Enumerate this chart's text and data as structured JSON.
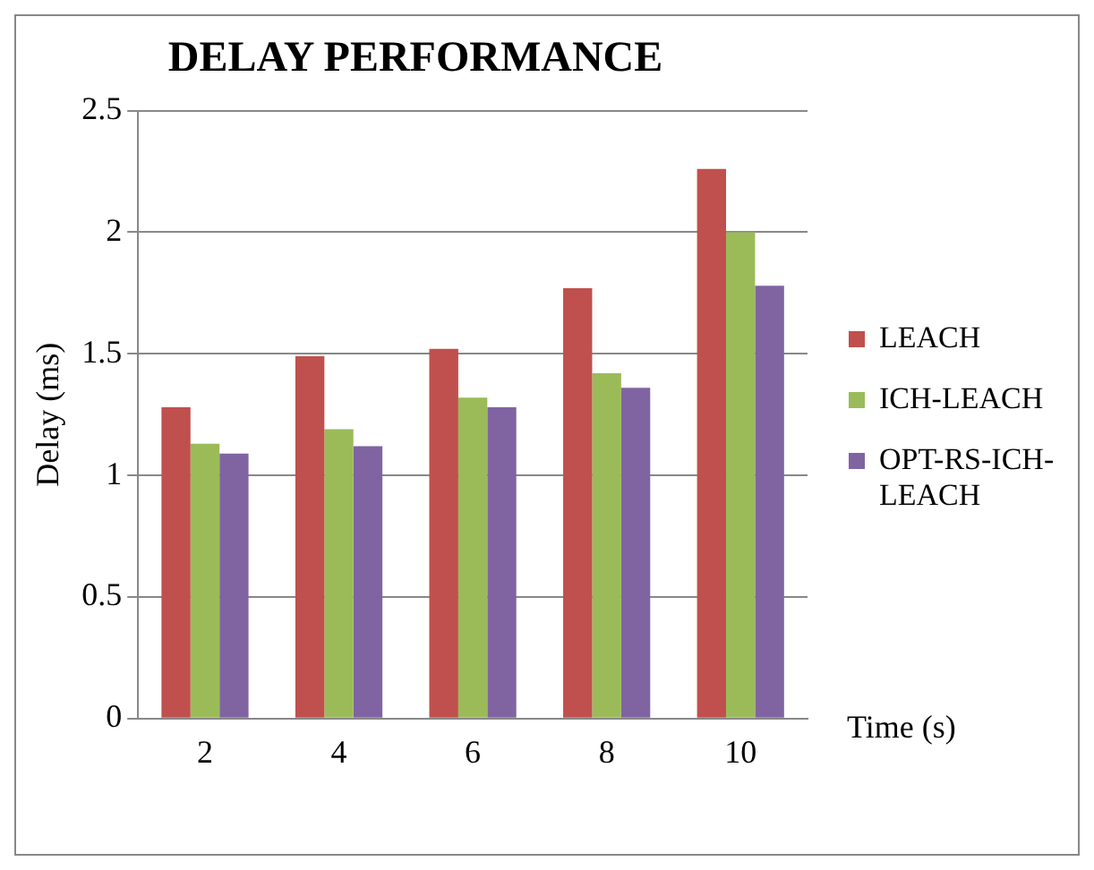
{
  "chart_data": {
    "type": "bar",
    "title": "DELAY PERFORMANCE",
    "xlabel": "Time (s)",
    "ylabel": "Delay (ms)",
    "categories": [
      "2",
      "4",
      "6",
      "8",
      "10"
    ],
    "series": [
      {
        "name": "LEACH",
        "color": "#c0504d",
        "values": [
          1.28,
          1.49,
          1.52,
          1.77,
          2.26
        ]
      },
      {
        "name": "ICH-LEACH",
        "color": "#9bbb59",
        "values": [
          1.13,
          1.19,
          1.32,
          1.42,
          2.0
        ]
      },
      {
        "name": "OPT-RS-ICH-LEACH",
        "color": "#8064a2",
        "values": [
          1.09,
          1.12,
          1.28,
          1.36,
          1.78
        ]
      }
    ],
    "ylim": [
      0,
      2.5
    ],
    "yticks": [
      0,
      0.5,
      1,
      1.5,
      2,
      2.5
    ],
    "grid": "y",
    "legend": "right"
  }
}
